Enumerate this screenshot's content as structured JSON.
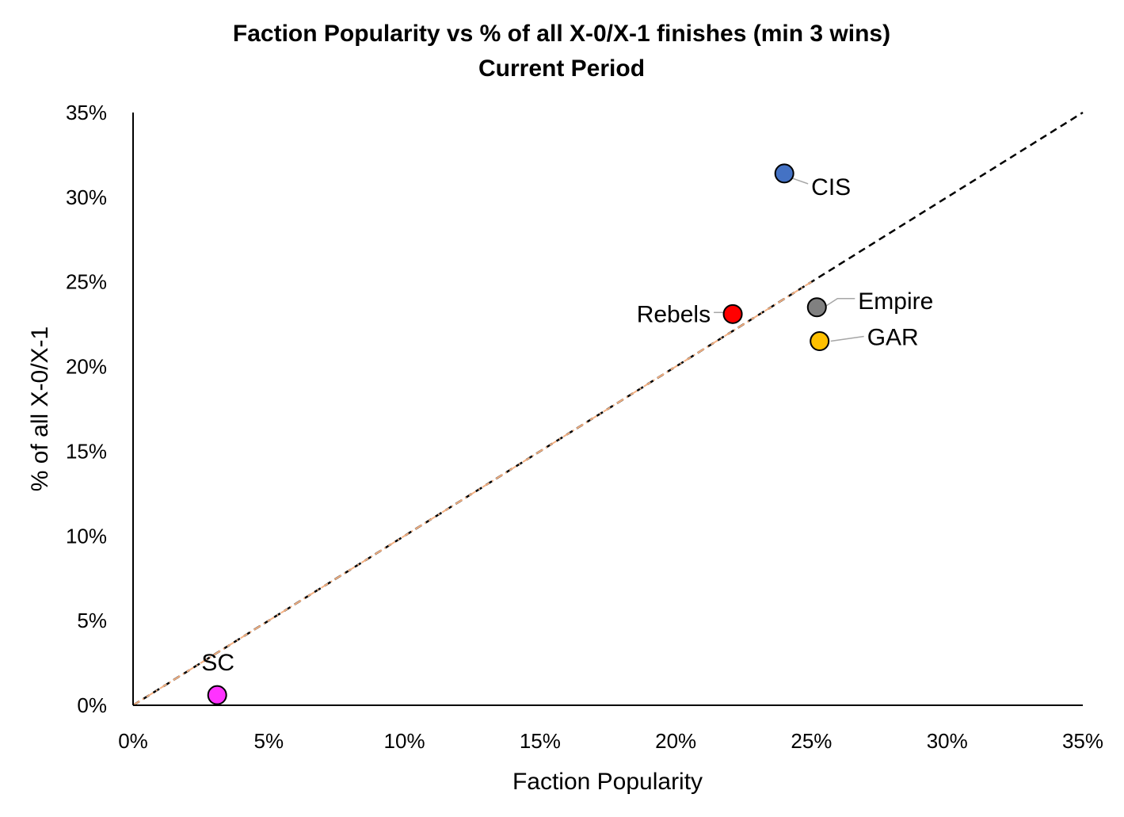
{
  "chart_data": {
    "type": "scatter",
    "title": "Faction Popularity vs % of all X-0/X-1 finishes (min 3 wins)",
    "subtitle": "Current Period",
    "xlabel": "Faction Popularity",
    "ylabel": "% of all X-0/X-1",
    "xlim": [
      0,
      0.35
    ],
    "ylim": [
      0,
      0.35
    ],
    "x_ticks": [
      "0%",
      "5%",
      "10%",
      "15%",
      "20%",
      "25%",
      "30%",
      "35%"
    ],
    "y_ticks": [
      "0%",
      "5%",
      "10%",
      "15%",
      "20%",
      "25%",
      "30%",
      "35%"
    ],
    "grid": false,
    "reference_line": {
      "style": "dashed",
      "from": [
        0,
        0
      ],
      "to": [
        0.35,
        0.35
      ]
    },
    "trend_line": {
      "style": "dash-dot",
      "color": "#F4B183",
      "from": [
        0,
        0
      ],
      "to": [
        0.25,
        0.25
      ]
    },
    "points": [
      {
        "label": "CIS",
        "x": 0.24,
        "y": 0.314,
        "color": "#4472C4",
        "label_side": "right-below"
      },
      {
        "label": "Empire",
        "x": 0.252,
        "y": 0.235,
        "color": "#808080",
        "label_side": "right-above"
      },
      {
        "label": "GAR",
        "x": 0.253,
        "y": 0.215,
        "color": "#FFC000",
        "label_side": "right"
      },
      {
        "label": "Rebels",
        "x": 0.221,
        "y": 0.231,
        "color": "#FF0000",
        "label_side": "left"
      },
      {
        "label": "SC",
        "x": 0.031,
        "y": 0.006,
        "color": "#FF33FF",
        "label_side": "above"
      }
    ]
  }
}
